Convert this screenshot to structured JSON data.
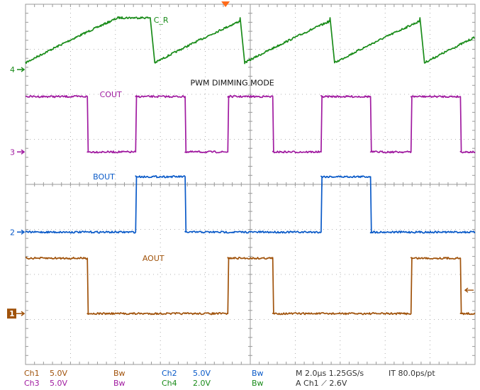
{
  "chart_data": {
    "type": "line",
    "title": "PWM DIMMING MODE",
    "colors": {
      "ch1": "#a0520a",
      "ch2": "#0a5ac8",
      "ch3": "#a01aa0",
      "ch4": "#1a8c1a",
      "grid": "#9a9a9a",
      "trigger": "#ff6a1a"
    },
    "axes": {
      "x_divisions": 10,
      "y_divisions": 8,
      "x_range": [
        0,
        20
      ],
      "x_unit": "µs",
      "y_range": [
        -4,
        4
      ],
      "grid": true
    },
    "markers": [
      {
        "label": "4",
        "channel": "ch4",
        "level": 2.55,
        "style": "plain"
      },
      {
        "label": "3",
        "channel": "ch3",
        "level": 0.72,
        "style": "plain"
      },
      {
        "label": "2",
        "channel": "ch2",
        "level": -1.06,
        "style": "plain"
      },
      {
        "label": "1",
        "channel": "ch1",
        "level": -2.87,
        "style": "box"
      }
    ],
    "series": [
      {
        "name": "C_R",
        "channel": "ch4",
        "kind": "sawtooth",
        "low": 2.7,
        "high": 3.7,
        "start_x": 0,
        "start_value": 2.7,
        "falls_x": [
          5.55,
          9.55,
          13.55,
          17.55
        ],
        "fall_duration": 0.2,
        "label_x": 5.7,
        "label_level": 3.65
      },
      {
        "name": "COUT",
        "channel": "ch3",
        "kind": "square",
        "low": 0.72,
        "high": 1.95,
        "start": "high",
        "transitions_x": [
          2.75,
          4.9,
          7.1,
          9.0,
          11.0,
          13.15,
          15.35,
          17.15,
          19.35
        ],
        "label_x": 3.3,
        "label_level": 2.0
      },
      {
        "name": "BOUT",
        "channel": "ch2",
        "kind": "square",
        "low": -1.06,
        "high": 0.17,
        "start": "low",
        "transitions_x": [
          4.9,
          7.1,
          13.15,
          15.35
        ],
        "label_x": 3.0,
        "label_level": 0.17
      },
      {
        "name": "AOUT",
        "channel": "ch1",
        "kind": "square",
        "low": -2.87,
        "high": -1.64,
        "start": "high",
        "transitions_x": [
          2.75,
          9.0,
          11.0,
          17.15,
          19.35
        ],
        "label_x": 5.2,
        "label_level": -1.64
      }
    ]
  },
  "status": {
    "row1": [
      {
        "text": "Ch1",
        "color": "#a0520a"
      },
      {
        "text": "5.0V",
        "color": "#a0520a"
      },
      {
        "text": "Bw",
        "color": "#a0520a"
      },
      {
        "text": "Ch2",
        "color": "#0a5ac8"
      },
      {
        "text": "5.0V",
        "color": "#0a5ac8"
      },
      {
        "text": "Bw",
        "color": "#0a5ac8"
      },
      {
        "text": "M 2.0µs 1.25GS/s",
        "color": "#333333"
      },
      {
        "text": "IT 80.0ps/pt",
        "color": "#333333"
      }
    ],
    "row2": [
      {
        "text": "Ch3",
        "color": "#a01aa0"
      },
      {
        "text": "5.0V",
        "color": "#a01aa0"
      },
      {
        "text": "Bw",
        "color": "#a01aa0"
      },
      {
        "text": "Ch4",
        "color": "#1a8c1a"
      },
      {
        "text": "2.0V",
        "color": "#1a8c1a"
      },
      {
        "text": "Bw",
        "color": "#1a8c1a"
      },
      {
        "text": "A  Ch1  ⟋  2.6V",
        "color": "#333333"
      }
    ]
  }
}
